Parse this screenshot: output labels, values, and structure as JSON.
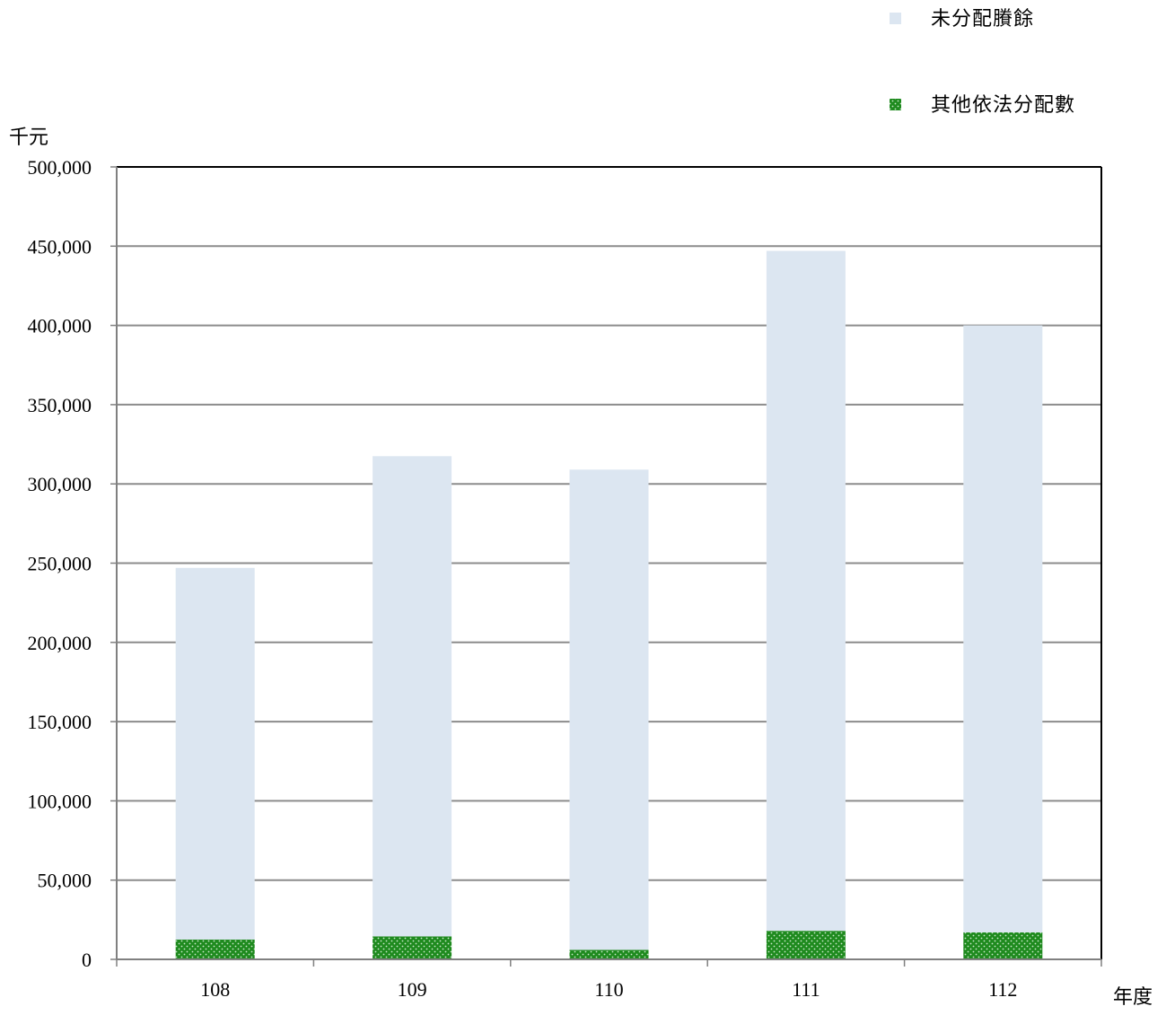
{
  "chart_data": {
    "type": "bar",
    "stacked": true,
    "ylabel": "千元",
    "xlabel": "年度",
    "categories": [
      "108",
      "109",
      "110",
      "111",
      "112"
    ],
    "ylim": [
      0,
      500000
    ],
    "yticks": [
      0,
      50000,
      100000,
      150000,
      200000,
      250000,
      300000,
      350000,
      400000,
      450000,
      500000
    ],
    "ytick_labels": [
      "0",
      "50,000",
      "100,000",
      "150,000",
      "200,000",
      "250,000",
      "300,000",
      "350,000",
      "400,000",
      "450,000",
      "500,000"
    ],
    "grid": true,
    "legend_position": "top-right",
    "series": [
      {
        "name": "其他依法分配數",
        "values": [
          12500,
          14500,
          6000,
          18000,
          17000
        ],
        "color": "#1e8a1e",
        "pattern": "dotted"
      },
      {
        "name": "未分配賸餘",
        "values": [
          234500,
          303000,
          303000,
          429000,
          383000
        ],
        "color": "#dce6f1"
      }
    ]
  }
}
